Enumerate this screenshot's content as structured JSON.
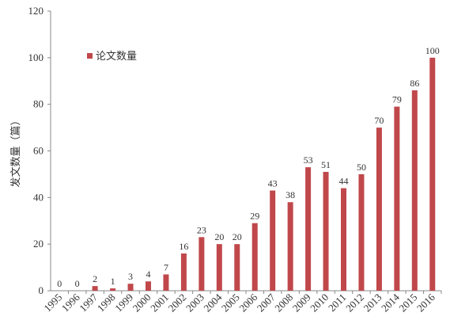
{
  "chart_data": {
    "type": "bar",
    "categories": [
      "1995",
      "1996",
      "1997",
      "1998",
      "1999",
      "2000",
      "2001",
      "2002",
      "2003",
      "2004",
      "2005",
      "2006",
      "2007",
      "2008",
      "2009",
      "2010",
      "2011",
      "2012",
      "2013",
      "2014",
      "2015",
      "2016"
    ],
    "series": [
      {
        "name": "论文数量",
        "values": [
          0,
          0,
          2,
          1,
          3,
          4,
          7,
          16,
          23,
          20,
          20,
          29,
          43,
          38,
          53,
          51,
          44,
          50,
          70,
          79,
          86,
          100
        ],
        "color": "#C0484B"
      }
    ],
    "ylabel": "发文数量（篇）",
    "xlabel": "",
    "ylim": [
      0,
      120
    ],
    "yticks": [
      0,
      20,
      40,
      60,
      80,
      100,
      120
    ],
    "grid": false,
    "legend": "top-left",
    "data_labels": true
  }
}
